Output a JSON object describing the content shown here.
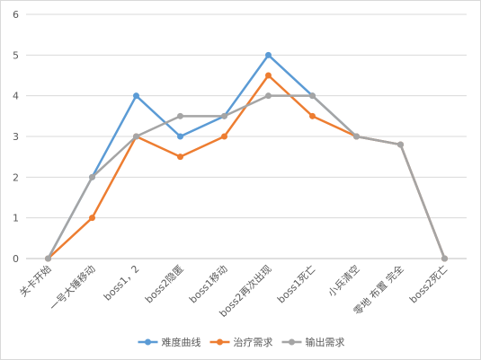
{
  "chart_data": {
    "type": "line",
    "title": "",
    "xlabel": "",
    "ylabel": "",
    "ylim": [
      0,
      6
    ],
    "yticks": [
      0,
      1,
      2,
      3,
      4,
      5,
      6
    ],
    "grid": "horizontal",
    "legend": "bottom",
    "categories": [
      "关卡开始",
      "一号大锤移动",
      "boss1，2",
      "boss2隐匿",
      "boss1移动",
      "boss2再次出现",
      "boss1死亡",
      "小兵清空",
      "零地 布置 完全",
      "boss2死亡"
    ],
    "series": [
      {
        "name": "难度曲线",
        "color": "#5b9bd5",
        "values": [
          0,
          2,
          4,
          3,
          3.5,
          5,
          4,
          3,
          2.8,
          0
        ]
      },
      {
        "name": "治疗需求",
        "color": "#ed7d31",
        "values": [
          0,
          1,
          3,
          2.5,
          3,
          4.5,
          3.5,
          3,
          2.8,
          0
        ]
      },
      {
        "name": "输出需求",
        "color": "#a5a5a5",
        "values": [
          0,
          2,
          3,
          3.5,
          3.5,
          4,
          4,
          3,
          2.8,
          0
        ]
      }
    ]
  }
}
